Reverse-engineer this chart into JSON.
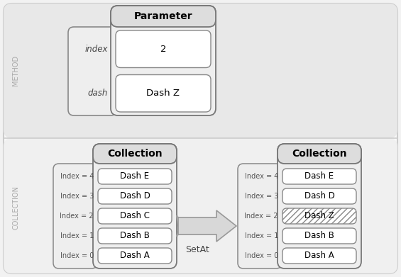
{
  "bg_color": "#f2f2f2",
  "top_section_color": "#e8e8e8",
  "bottom_section_color": "#f5f5f5",
  "box_face_light": "#eeeeee",
  "box_face_white": "#ffffff",
  "header_face": "#dedede",
  "edge_color": "#888888",
  "edge_color_dark": "#666666",
  "outer_edge": "#cccccc",
  "text_gray": "#aaaaaa",
  "text_dark": "#333333",
  "text_mid": "#555555",
  "method_label": "METHOD",
  "collection_label": "COLLECTION",
  "param_header": "Parameter",
  "param_rows": [
    "index",
    "dash"
  ],
  "param_values": [
    "2",
    "Dash Z"
  ],
  "collection_header": "Collection",
  "left_items": [
    "Dash E",
    "Dash D",
    "Dash C",
    "Dash B",
    "Dash A"
  ],
  "right_items": [
    "Dash E",
    "Dash D",
    "Dash Z",
    "Dash B",
    "Dash A"
  ],
  "collection_indices": [
    "Index = 4",
    "Index = 3",
    "Index = 2",
    "Index = 1",
    "Index = 0"
  ],
  "setat_label": "SetAt",
  "highlighted_index": 2,
  "arrow_color": "#cccccc",
  "arrow_edge": "#999999"
}
